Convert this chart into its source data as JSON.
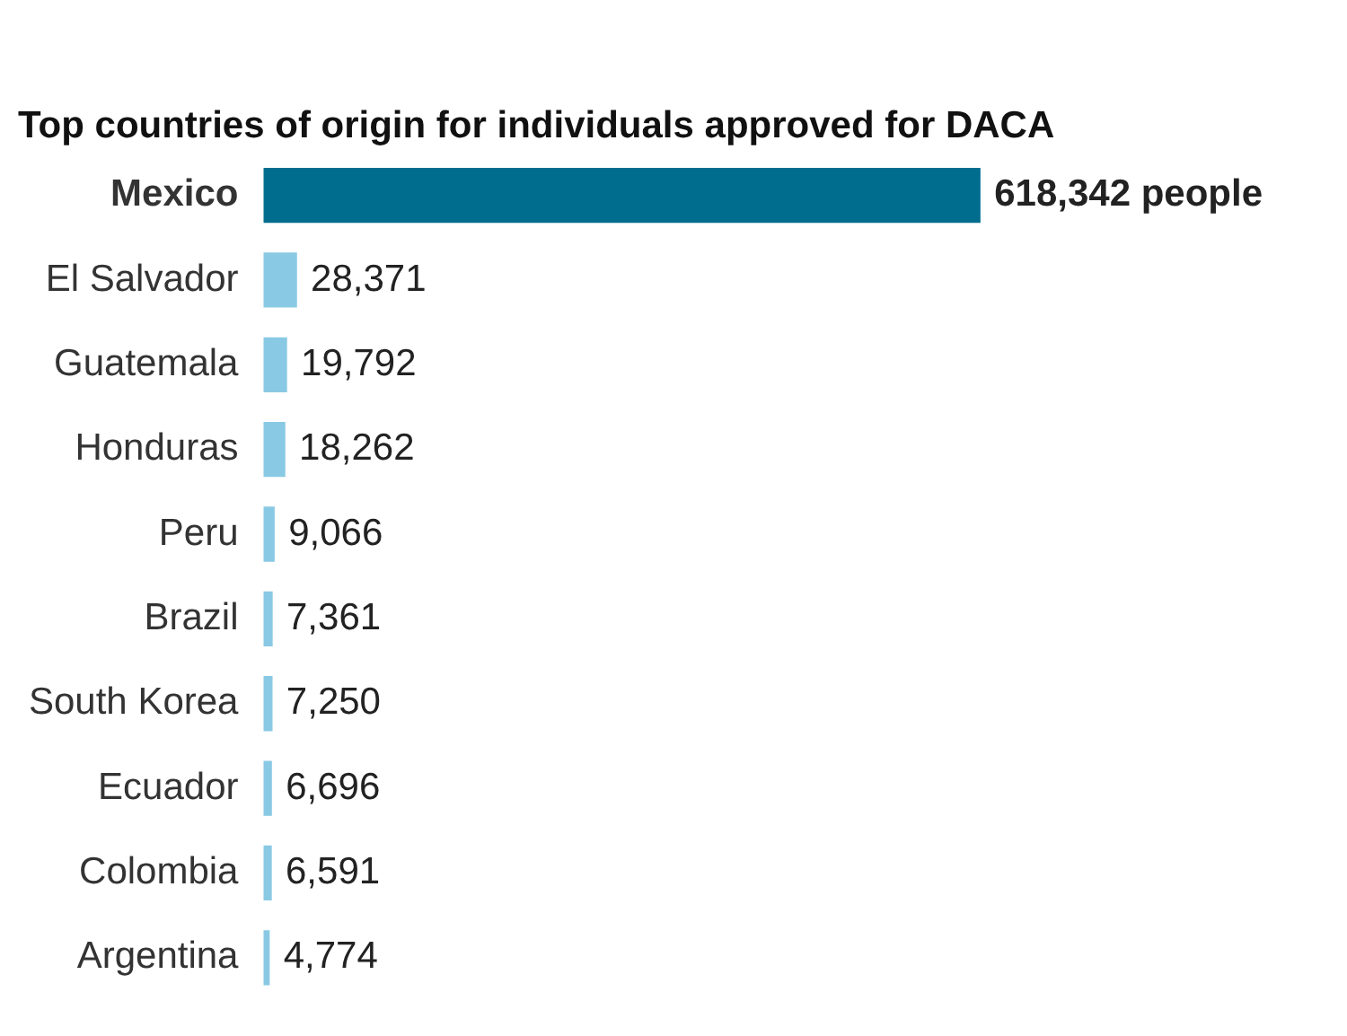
{
  "chart_data": {
    "type": "bar",
    "orientation": "horizontal",
    "title": "Top countries of origin for individuals approved for DACA",
    "categories": [
      "Mexico",
      "El Salvador",
      "Guatemala",
      "Honduras",
      "Peru",
      "Brazil",
      "South Korea",
      "Ecuador",
      "Colombia",
      "Argentina"
    ],
    "values": [
      618342,
      28371,
      19792,
      18262,
      9066,
      7361,
      7250,
      6696,
      6591,
      4774
    ],
    "colors": [
      "#006d8f",
      "#89c9e4",
      "#89c9e4",
      "#89c9e4",
      "#89c9e4",
      "#89c9e4",
      "#89c9e4",
      "#89c9e4",
      "#89c9e4",
      "#89c9e4"
    ],
    "value_labels": [
      "618,342 people",
      "28,371",
      "19,792",
      "18,262",
      "9,066",
      "7,361",
      "7,250",
      "6,696",
      "6,591",
      "4,774"
    ]
  }
}
